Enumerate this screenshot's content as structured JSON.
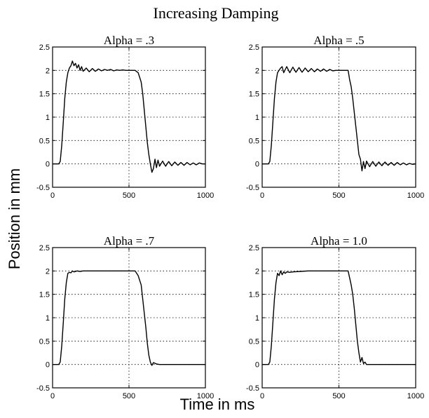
{
  "title": "Increasing Damping",
  "ylabel": "Position in mm",
  "xlabel": "Time in ms",
  "chart_data": [
    {
      "type": "line",
      "title": "Alpha = .3",
      "xlim": [
        0,
        1000
      ],
      "ylim": [
        -0.5,
        2.5
      ],
      "xticks": [
        0,
        500,
        1000
      ],
      "xtick_labels": [
        "0",
        "500",
        "1000"
      ],
      "yticks": [
        -0.5,
        0,
        0.5,
        1,
        1.5,
        2,
        2.5
      ],
      "ytick_labels": [
        "-0.5",
        "0",
        "0.5",
        "1",
        "1.5",
        "2",
        "2.5"
      ],
      "grid": true,
      "x": [
        0,
        40,
        50,
        60,
        70,
        80,
        90,
        100,
        110,
        120,
        130,
        140,
        150,
        160,
        170,
        180,
        190,
        200,
        220,
        240,
        260,
        280,
        300,
        320,
        340,
        360,
        380,
        400,
        420,
        440,
        460,
        480,
        500,
        520,
        540,
        560,
        580,
        590,
        600,
        610,
        620,
        630,
        640,
        650,
        660,
        670,
        680,
        690,
        700,
        720,
        740,
        760,
        780,
        800,
        820,
        840,
        860,
        880,
        900,
        920,
        940,
        960,
        980,
        1000
      ],
      "y": [
        0,
        0,
        0.05,
        0.4,
        0.9,
        1.4,
        1.75,
        1.95,
        2.05,
        2.1,
        2.2,
        2.1,
        2.15,
        2.05,
        2.12,
        2.0,
        2.08,
        1.98,
        2.05,
        1.97,
        2.04,
        1.98,
        2.03,
        1.99,
        2.02,
        2.0,
        2.02,
        1.99,
        2.01,
        2.0,
        2.01,
        2.0,
        2.0,
        2.0,
        2.0,
        1.95,
        1.75,
        1.5,
        1.15,
        0.8,
        0.45,
        0.2,
        0.0,
        -0.18,
        -0.1,
        0.1,
        -0.08,
        0.08,
        -0.05,
        0.06,
        -0.05,
        0.05,
        -0.04,
        0.04,
        -0.03,
        0.03,
        -0.03,
        0.03,
        -0.02,
        0.02,
        -0.02,
        0.02,
        0.0,
        0.0
      ]
    },
    {
      "type": "line",
      "title": "Alpha = .5",
      "xlim": [
        0,
        1000
      ],
      "ylim": [
        -0.5,
        2.5
      ],
      "xticks": [
        0,
        500,
        1000
      ],
      "xtick_labels": [
        "0",
        "500",
        "1000"
      ],
      "yticks": [
        -0.5,
        0,
        0.5,
        1,
        1.5,
        2,
        2.5
      ],
      "ytick_labels": [
        "-0.5",
        "0",
        "0.5",
        "1",
        "1.5",
        "2",
        "2.5"
      ],
      "grid": true,
      "x": [
        0,
        40,
        50,
        60,
        70,
        80,
        90,
        100,
        110,
        120,
        130,
        140,
        160,
        180,
        200,
        220,
        240,
        260,
        280,
        300,
        320,
        340,
        360,
        380,
        400,
        420,
        440,
        460,
        480,
        500,
        520,
        540,
        560,
        570,
        580,
        590,
        600,
        610,
        620,
        630,
        640,
        650,
        660,
        670,
        680,
        700,
        720,
        740,
        760,
        780,
        800,
        820,
        840,
        860,
        880,
        900,
        920,
        940,
        960,
        980,
        1000
      ],
      "y": [
        0,
        0,
        0.05,
        0.4,
        0.9,
        1.4,
        1.75,
        1.95,
        2.0,
        2.05,
        2.08,
        1.95,
        2.08,
        1.95,
        2.07,
        1.96,
        2.06,
        1.96,
        2.05,
        1.97,
        2.04,
        1.97,
        2.03,
        1.98,
        2.03,
        1.98,
        2.02,
        1.99,
        2.0,
        2.0,
        2.0,
        2.0,
        2.0,
        1.8,
        1.65,
        1.4,
        1.1,
        0.8,
        0.5,
        0.2,
        0.1,
        -0.15,
        0.05,
        -0.1,
        0.06,
        -0.06,
        0.05,
        -0.05,
        0.04,
        -0.04,
        0.04,
        -0.03,
        0.03,
        -0.03,
        0.03,
        -0.02,
        0.02,
        -0.02,
        0.01,
        -0.01,
        0.0
      ]
    },
    {
      "type": "line",
      "title": "Alpha = .7",
      "xlim": [
        0,
        1000
      ],
      "ylim": [
        -0.5,
        2.5
      ],
      "xticks": [
        0,
        500,
        1000
      ],
      "xtick_labels": [
        "0",
        "500",
        "1000"
      ],
      "yticks": [
        -0.5,
        0,
        0.5,
        1,
        1.5,
        2,
        2.5
      ],
      "ytick_labels": [
        "-0.5",
        "0",
        "0.5",
        "1",
        "1.5",
        "2",
        "2.5"
      ],
      "grid": true,
      "x": [
        0,
        40,
        50,
        60,
        70,
        80,
        90,
        100,
        110,
        120,
        130,
        140,
        160,
        180,
        200,
        300,
        400,
        500,
        540,
        560,
        580,
        590,
        600,
        610,
        620,
        630,
        640,
        650,
        660,
        680,
        700,
        800,
        900,
        1000
      ],
      "y": [
        0,
        0,
        0.05,
        0.4,
        0.9,
        1.4,
        1.75,
        1.95,
        1.97,
        1.96,
        2.0,
        1.98,
        2.0,
        1.99,
        2.0,
        2.0,
        2.0,
        2.0,
        2.0,
        1.9,
        1.7,
        1.4,
        1.1,
        0.8,
        0.45,
        0.2,
        0.05,
        -0.02,
        0.04,
        0.01,
        0.0,
        0.0,
        0.0,
        0.0
      ]
    },
    {
      "type": "line",
      "title": "Alpha = 1.0",
      "xlim": [
        0,
        1000
      ],
      "ylim": [
        -0.5,
        2.5
      ],
      "xticks": [
        0,
        500,
        1000
      ],
      "xtick_labels": [
        "0",
        "500",
        "1000"
      ],
      "yticks": [
        -0.5,
        0,
        0.5,
        1,
        1.5,
        2,
        2.5
      ],
      "ytick_labels": [
        "-0.5",
        "0",
        "0.5",
        "1",
        "1.5",
        "2",
        "2.5"
      ],
      "grid": true,
      "x": [
        0,
        40,
        50,
        60,
        70,
        80,
        90,
        100,
        110,
        120,
        130,
        140,
        150,
        160,
        180,
        200,
        250,
        300,
        400,
        500,
        540,
        560,
        570,
        580,
        590,
        600,
        610,
        620,
        630,
        640,
        650,
        660,
        670,
        680,
        700,
        800,
        900,
        1000
      ],
      "y": [
        0,
        0,
        0.05,
        0.4,
        0.9,
        1.4,
        1.75,
        1.95,
        1.9,
        2.0,
        1.92,
        1.98,
        1.95,
        1.98,
        1.97,
        1.98,
        1.99,
        2.0,
        2.0,
        2.0,
        2.0,
        2.0,
        1.85,
        1.7,
        1.5,
        1.2,
        0.85,
        0.5,
        0.25,
        0.05,
        0.15,
        0.02,
        0.05,
        0.0,
        0.0,
        0.0,
        0.0,
        0.0
      ]
    }
  ]
}
